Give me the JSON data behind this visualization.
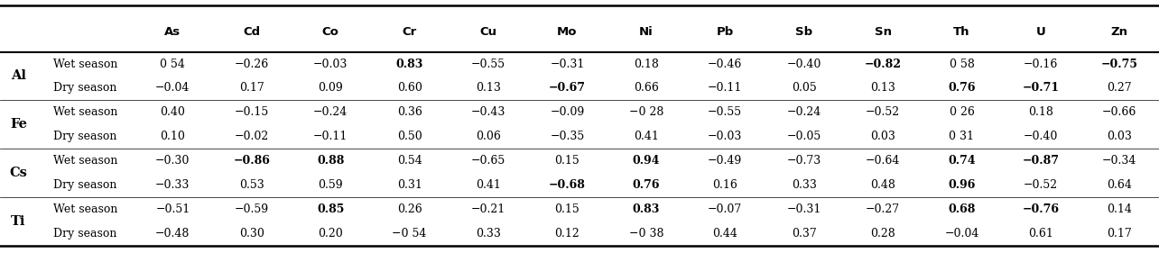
{
  "columns": [
    "As",
    "Cd",
    "Co",
    "Cr",
    "Cu",
    "Mo",
    "Ni",
    "Pb",
    "Sb",
    "Sn",
    "Th",
    "U",
    "Zn"
  ],
  "rows": [
    {
      "group": "Al",
      "season": "Wet season",
      "values": [
        "0 54",
        "−0.26",
        "−0.03",
        "0.83",
        "−0.55",
        "−0.31",
        "0.18",
        "−0.46",
        "−0.40",
        "−0.82",
        "0 58",
        "−0.16",
        "−0.75"
      ],
      "bold": [
        false,
        false,
        false,
        true,
        false,
        false,
        false,
        false,
        false,
        true,
        false,
        false,
        true
      ]
    },
    {
      "group": "Al",
      "season": "Dry season",
      "values": [
        "−0.04",
        "0.17",
        "0.09",
        "0.60",
        "0.13",
        "−0.67",
        "0.66",
        "−0.11",
        "0.05",
        "0.13",
        "0.76",
        "−0.71",
        "0.27"
      ],
      "bold": [
        false,
        false,
        false,
        false,
        false,
        true,
        false,
        false,
        false,
        false,
        true,
        true,
        false
      ]
    },
    {
      "group": "Fe",
      "season": "Wet season",
      "values": [
        "0.40",
        "−0.15",
        "−0.24",
        "0.36",
        "−0.43",
        "−0.09",
        "−0 28",
        "−0.55",
        "−0.24",
        "−0.52",
        "0 26",
        "0.18",
        "−0.66"
      ],
      "bold": [
        false,
        false,
        false,
        false,
        false,
        false,
        false,
        false,
        false,
        false,
        false,
        false,
        false
      ]
    },
    {
      "group": "Fe",
      "season": "Dry season",
      "values": [
        "0.10",
        "−0.02",
        "−0.11",
        "0.50",
        "0.06",
        "−0.35",
        "0.41",
        "−0.03",
        "−0.05",
        "0.03",
        "0 31",
        "−0.40",
        "0.03"
      ],
      "bold": [
        false,
        false,
        false,
        false,
        false,
        false,
        false,
        false,
        false,
        false,
        false,
        false,
        false
      ]
    },
    {
      "group": "Cs",
      "season": "Wet season",
      "values": [
        "−0.30",
        "−0.86",
        "0.88",
        "0.54",
        "−0.65",
        "0.15",
        "0.94",
        "−0.49",
        "−0.73",
        "−0.64",
        "0.74",
        "−0.87",
        "−0.34"
      ],
      "bold": [
        false,
        true,
        true,
        false,
        false,
        false,
        true,
        false,
        false,
        false,
        true,
        true,
        false
      ]
    },
    {
      "group": "Cs",
      "season": "Dry season",
      "values": [
        "−0.33",
        "0.53",
        "0.59",
        "0.31",
        "0.41",
        "−0.68",
        "0.76",
        "0.16",
        "0.33",
        "0.48",
        "0.96",
        "−0.52",
        "0.64"
      ],
      "bold": [
        false,
        false,
        false,
        false,
        false,
        true,
        true,
        false,
        false,
        false,
        true,
        false,
        false
      ]
    },
    {
      "group": "Ti",
      "season": "Wet season",
      "values": [
        "−0.51",
        "−0.59",
        "0.85",
        "0.26",
        "−0.21",
        "0.15",
        "0.83",
        "−0.07",
        "−0.31",
        "−0.27",
        "0.68",
        "−0.76",
        "0.14"
      ],
      "bold": [
        false,
        false,
        true,
        false,
        false,
        false,
        true,
        false,
        false,
        false,
        true,
        true,
        false
      ]
    },
    {
      "group": "Ti",
      "season": "Dry season",
      "values": [
        "−0.48",
        "0.30",
        "0.20",
        "−0 54",
        "0.33",
        "0.12",
        "−0 38",
        "0.44",
        "0.37",
        "0.28",
        "−0.04",
        "0.61",
        "0.17"
      ],
      "bold": [
        false,
        false,
        false,
        false,
        false,
        false,
        false,
        false,
        false,
        false,
        false,
        false,
        false
      ]
    }
  ],
  "background_color": "#ffffff",
  "font_size": 9.0,
  "header_font_size": 9.5,
  "group_font_size": 10.5
}
